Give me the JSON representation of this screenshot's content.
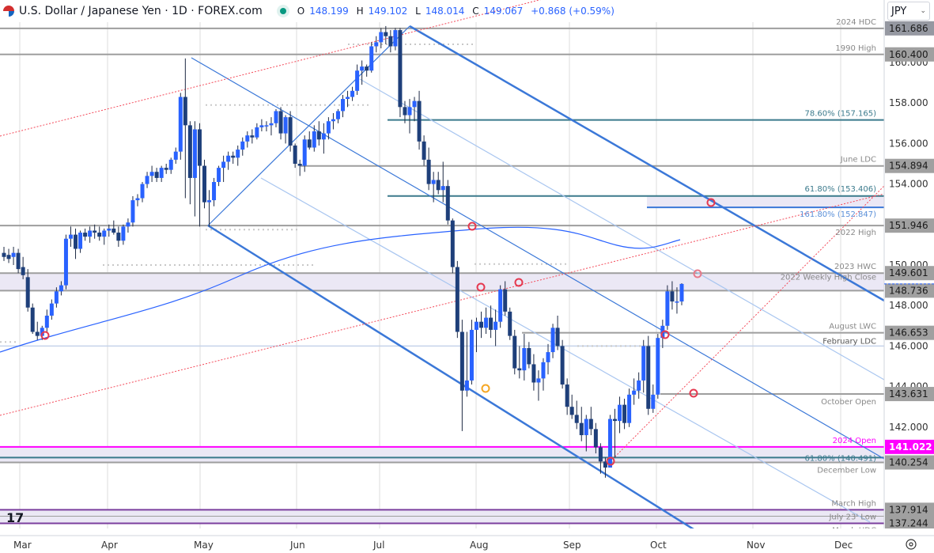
{
  "header": {
    "title": "U.S. Dollar / Japanese Yen · 1D · FOREX.com",
    "open_label": "O",
    "open": "148.199",
    "high_label": "H",
    "high": "149.102",
    "low_label": "L",
    "low": "148.014",
    "close_label": "C",
    "close": "149.067",
    "change": "+0.868 (+0.59%)",
    "market_status": "open"
  },
  "currency_selector": {
    "value": "JPY",
    "icon": "chevron-down-icon"
  },
  "settings_icon": "gear-icon",
  "logo": "tradingview-logo",
  "colors": {
    "up": "#2962ff",
    "down": "#1e3f7a",
    "level": "#9e9e9e",
    "fib": "#3b7a8c",
    "magenta": "#ff00ff",
    "channel": "#3b78d8",
    "channel_light": "#a9c6f0",
    "sma": "#2962ff",
    "trend_dotted": "#f44a5a",
    "zone": "#ebe8f5",
    "purple": "#7b3f9e"
  },
  "chart_data": {
    "type": "candlestick",
    "title": "U.S. Dollar / Japanese Yen · 1D · FOREX.com",
    "xlabel": "",
    "ylabel": "JPY",
    "ylim": [
      136.5,
      162.5
    ],
    "x_ticks": [
      "Mar",
      "Apr",
      "May",
      "Jun",
      "Jul",
      "Aug",
      "Sep",
      "Oct",
      "Nov",
      "Dec"
    ],
    "y_ticks": [
      142.0,
      144.0,
      146.0,
      148.0,
      150.0,
      154.0,
      156.0,
      158.0,
      160.0
    ],
    "last_ohlc": {
      "open": 148.199,
      "high": 149.102,
      "low": 148.014,
      "close": 149.067,
      "change": 0.868,
      "change_pct": 0.59
    },
    "levels": [
      {
        "label": "2024 HDC",
        "value": 161.686
      },
      {
        "label": "1990 High",
        "value": 160.4
      },
      {
        "label": "78.60% (157.165)",
        "value": 157.165,
        "kind": "fib"
      },
      {
        "label": "June LDC",
        "value": 154.894
      },
      {
        "label": "61.80% (153.406)",
        "value": 153.406,
        "kind": "fib"
      },
      {
        "label": "161.80% (152.847)",
        "value": 152.847,
        "kind": "fib-ext"
      },
      {
        "label": "2022 High",
        "value": 151.946
      },
      {
        "label": "2023 HWC",
        "value": 149.601
      },
      {
        "label": "2022 Weekly High Close",
        "value": 148.736
      },
      {
        "label": "August LWC",
        "value": 146.653
      },
      {
        "label": "February LDC",
        "value": 146.0
      },
      {
        "label": "October Open",
        "value": 143.631
      },
      {
        "label": "2024 Open",
        "value": 141.022,
        "kind": "magenta"
      },
      {
        "label": "61.80% (140.491)",
        "value": 140.491,
        "kind": "fib"
      },
      {
        "label": "December Low",
        "value": 140.254
      },
      {
        "label": "March High",
        "value": 137.914
      },
      {
        "label": "July 23' Low",
        "value": 137.6
      },
      {
        "label": "March HDC",
        "value": 137.244
      }
    ],
    "price_badges": [
      {
        "value": "161.686"
      },
      {
        "value": "160.400"
      },
      {
        "value": "154.894"
      },
      {
        "value": "151.946"
      },
      {
        "value": "149.601"
      },
      {
        "value": "148.736"
      },
      {
        "value": "146.653"
      },
      {
        "value": "143.631"
      },
      {
        "value": "141.022",
        "highlight": "magenta"
      },
      {
        "value": "140.254"
      },
      {
        "value": "137.914"
      },
      {
        "value": "137.244"
      }
    ],
    "candles": [
      [
        150.6,
        150.9,
        150.2,
        150.4
      ],
      [
        150.5,
        150.8,
        150.1,
        150.3
      ],
      [
        150.4,
        150.9,
        150.0,
        150.6
      ],
      [
        150.6,
        150.8,
        149.6,
        149.8
      ],
      [
        149.9,
        150.4,
        149.3,
        149.5
      ],
      [
        149.4,
        149.8,
        147.7,
        147.9
      ],
      [
        147.9,
        148.1,
        146.6,
        146.7
      ],
      [
        146.7,
        147.2,
        146.3,
        146.5
      ],
      [
        146.5,
        147.0,
        146.3,
        146.9
      ],
      [
        146.9,
        147.8,
        146.7,
        147.5
      ],
      [
        147.5,
        148.3,
        147.3,
        148.1
      ],
      [
        148.1,
        148.9,
        147.9,
        148.7
      ],
      [
        148.7,
        149.2,
        148.5,
        149.0
      ],
      [
        149.0,
        151.5,
        148.8,
        151.3
      ],
      [
        151.3,
        151.9,
        150.9,
        151.5
      ],
      [
        151.5,
        151.8,
        150.3,
        150.8
      ],
      [
        150.8,
        151.7,
        150.6,
        151.6
      ],
      [
        151.6,
        151.8,
        151.2,
        151.4
      ],
      [
        151.4,
        151.9,
        151.1,
        151.7
      ],
      [
        151.7,
        152.0,
        151.3,
        151.6
      ],
      [
        151.6,
        151.9,
        151.2,
        151.4
      ],
      [
        151.4,
        151.8,
        151.0,
        151.7
      ],
      [
        151.7,
        152.0,
        151.4,
        151.8
      ],
      [
        151.8,
        152.2,
        151.5,
        151.6
      ],
      [
        151.6,
        151.9,
        150.9,
        151.2
      ],
      [
        151.2,
        152.0,
        151.0,
        151.9
      ],
      [
        151.9,
        152.3,
        151.6,
        152.1
      ],
      [
        152.1,
        153.4,
        151.9,
        153.2
      ],
      [
        153.2,
        153.5,
        152.9,
        153.3
      ],
      [
        153.3,
        154.1,
        153.1,
        154.0
      ],
      [
        154.0,
        154.6,
        153.8,
        154.4
      ],
      [
        154.4,
        154.9,
        154.1,
        154.6
      ],
      [
        154.6,
        154.8,
        154.1,
        154.3
      ],
      [
        154.3,
        154.9,
        154.1,
        154.8
      ],
      [
        154.8,
        155.0,
        154.5,
        154.7
      ],
      [
        154.7,
        155.3,
        154.5,
        155.2
      ],
      [
        155.2,
        155.8,
        155.0,
        155.6
      ],
      [
        155.6,
        158.5,
        155.2,
        158.3
      ],
      [
        158.3,
        160.2,
        153.3,
        156.9
      ],
      [
        156.9,
        157.1,
        153.0,
        154.3
      ],
      [
        154.3,
        157.1,
        152.4,
        156.7
      ],
      [
        156.7,
        157.0,
        151.9,
        154.9
      ],
      [
        154.9,
        155.2,
        152.8,
        153.1
      ],
      [
        153.1,
        153.7,
        151.9,
        153.2
      ],
      [
        153.2,
        154.3,
        152.9,
        154.1
      ],
      [
        154.1,
        154.9,
        153.9,
        154.8
      ],
      [
        154.8,
        155.4,
        154.1,
        155.1
      ],
      [
        155.1,
        155.6,
        154.7,
        155.4
      ],
      [
        155.4,
        155.6,
        155.0,
        155.3
      ],
      [
        155.3,
        155.9,
        154.9,
        155.7
      ],
      [
        155.7,
        156.3,
        155.4,
        156.1
      ],
      [
        156.1,
        156.6,
        155.8,
        156.4
      ],
      [
        156.4,
        156.7,
        156.0,
        156.3
      ],
      [
        156.3,
        157.0,
        156.2,
        156.8
      ],
      [
        156.8,
        157.2,
        156.6,
        156.9
      ],
      [
        156.9,
        157.1,
        156.6,
        156.9
      ],
      [
        156.9,
        157.3,
        156.4,
        157.0
      ],
      [
        157.0,
        157.7,
        156.8,
        157.6
      ],
      [
        157.6,
        157.8,
        156.2,
        156.5
      ],
      [
        156.5,
        157.4,
        156.0,
        157.3
      ],
      [
        157.3,
        157.6,
        155.6,
        155.9
      ],
      [
        155.9,
        156.0,
        154.8,
        155.0
      ],
      [
        155.0,
        155.2,
        154.4,
        154.9
      ],
      [
        154.9,
        156.4,
        154.6,
        156.2
      ],
      [
        156.2,
        156.6,
        155.7,
        155.8
      ],
      [
        155.8,
        156.9,
        155.6,
        156.6
      ],
      [
        156.6,
        157.1,
        155.9,
        156.2
      ],
      [
        156.2,
        157.0,
        155.5,
        156.5
      ],
      [
        156.5,
        157.3,
        156.2,
        157.1
      ],
      [
        157.1,
        157.5,
        156.7,
        157.2
      ],
      [
        157.2,
        157.7,
        157.0,
        157.6
      ],
      [
        157.6,
        158.4,
        157.3,
        158.2
      ],
      [
        158.2,
        158.6,
        157.8,
        158.3
      ],
      [
        158.3,
        158.8,
        158.1,
        158.6
      ],
      [
        158.6,
        159.9,
        158.4,
        159.6
      ],
      [
        159.6,
        160.1,
        158.9,
        159.8
      ],
      [
        159.8,
        159.9,
        159.3,
        159.6
      ],
      [
        159.6,
        161.0,
        159.5,
        160.8
      ],
      [
        160.8,
        161.3,
        160.5,
        161.0
      ],
      [
        161.0,
        161.7,
        160.7,
        161.5
      ],
      [
        161.5,
        161.8,
        160.9,
        161.3
      ],
      [
        161.3,
        161.6,
        160.5,
        160.8
      ],
      [
        160.8,
        161.7,
        160.6,
        161.6
      ],
      [
        161.6,
        161.7,
        157.3,
        157.8
      ],
      [
        157.8,
        158.1,
        157.0,
        157.4
      ],
      [
        157.4,
        158.2,
        156.5,
        157.8
      ],
      [
        157.8,
        158.3,
        157.1,
        158.1
      ],
      [
        158.1,
        158.6,
        155.7,
        156.1
      ],
      [
        156.1,
        156.4,
        154.9,
        155.2
      ],
      [
        155.2,
        155.8,
        153.7,
        154.0
      ],
      [
        154.0,
        154.6,
        153.1,
        154.2
      ],
      [
        154.2,
        154.6,
        153.5,
        153.7
      ],
      [
        153.7,
        155.1,
        153.1,
        153.9
      ],
      [
        153.9,
        154.2,
        152.0,
        152.2
      ],
      [
        152.2,
        152.3,
        149.6,
        149.9
      ],
      [
        149.9,
        150.2,
        146.4,
        146.7
      ],
      [
        146.7,
        147.3,
        141.8,
        143.8
      ],
      [
        143.8,
        146.7,
        143.5,
        144.3
      ],
      [
        144.3,
        147.3,
        144.1,
        146.8
      ],
      [
        146.8,
        147.4,
        145.7,
        147.2
      ],
      [
        147.2,
        147.7,
        146.4,
        146.9
      ],
      [
        146.9,
        147.9,
        146.6,
        147.4
      ],
      [
        147.4,
        148.0,
        146.4,
        146.8
      ],
      [
        146.8,
        147.8,
        146.0,
        147.2
      ],
      [
        147.2,
        149.0,
        146.9,
        148.8
      ],
      [
        148.8,
        149.2,
        147.5,
        147.7
      ],
      [
        147.7,
        147.9,
        146.3,
        146.5
      ],
      [
        146.5,
        146.8,
        144.6,
        144.9
      ],
      [
        144.9,
        146.0,
        144.4,
        144.8
      ],
      [
        144.8,
        146.6,
        144.3,
        145.9
      ],
      [
        145.9,
        146.2,
        144.9,
        145.1
      ],
      [
        145.1,
        145.6,
        143.8,
        144.2
      ],
      [
        144.2,
        144.8,
        143.3,
        144.4
      ],
      [
        144.4,
        145.4,
        143.8,
        145.2
      ],
      [
        145.2,
        146.1,
        144.6,
        145.7
      ],
      [
        145.7,
        147.1,
        145.4,
        146.9
      ],
      [
        146.9,
        147.5,
        145.8,
        146.0
      ],
      [
        146.0,
        146.3,
        143.9,
        144.1
      ],
      [
        144.1,
        144.4,
        142.6,
        143.0
      ],
      [
        143.0,
        143.6,
        142.4,
        142.6
      ],
      [
        142.6,
        143.3,
        141.9,
        142.2
      ],
      [
        142.2,
        143.0,
        141.3,
        141.6
      ],
      [
        141.6,
        142.6,
        140.8,
        142.4
      ],
      [
        142.4,
        143.0,
        141.6,
        141.9
      ],
      [
        141.9,
        142.2,
        140.7,
        141.0
      ],
      [
        141.0,
        141.2,
        139.7,
        140.3
      ],
      [
        140.3,
        140.5,
        139.5,
        140.0
      ],
      [
        140.0,
        142.6,
        140.0,
        142.4
      ],
      [
        142.4,
        142.9,
        140.5,
        142.3
      ],
      [
        142.3,
        143.5,
        141.7,
        143.1
      ],
      [
        143.1,
        143.4,
        141.9,
        142.2
      ],
      [
        142.2,
        143.9,
        142.0,
        143.6
      ],
      [
        143.6,
        144.4,
        143.1,
        143.8
      ],
      [
        143.8,
        144.7,
        143.4,
        144.3
      ],
      [
        144.3,
        146.3,
        143.7,
        146.0
      ],
      [
        146.0,
        146.5,
        142.6,
        142.9
      ],
      [
        142.9,
        144.1,
        142.7,
        143.6
      ],
      [
        143.6,
        146.6,
        143.4,
        146.4
      ],
      [
        146.4,
        147.3,
        145.9,
        147.0
      ],
      [
        147.0,
        149.0,
        146.8,
        148.7
      ],
      [
        148.7,
        149.2,
        147.8,
        148.2
      ],
      [
        148.2,
        148.9,
        147.6,
        148.2
      ],
      [
        148.199,
        149.102,
        148.014,
        149.067
      ]
    ]
  }
}
